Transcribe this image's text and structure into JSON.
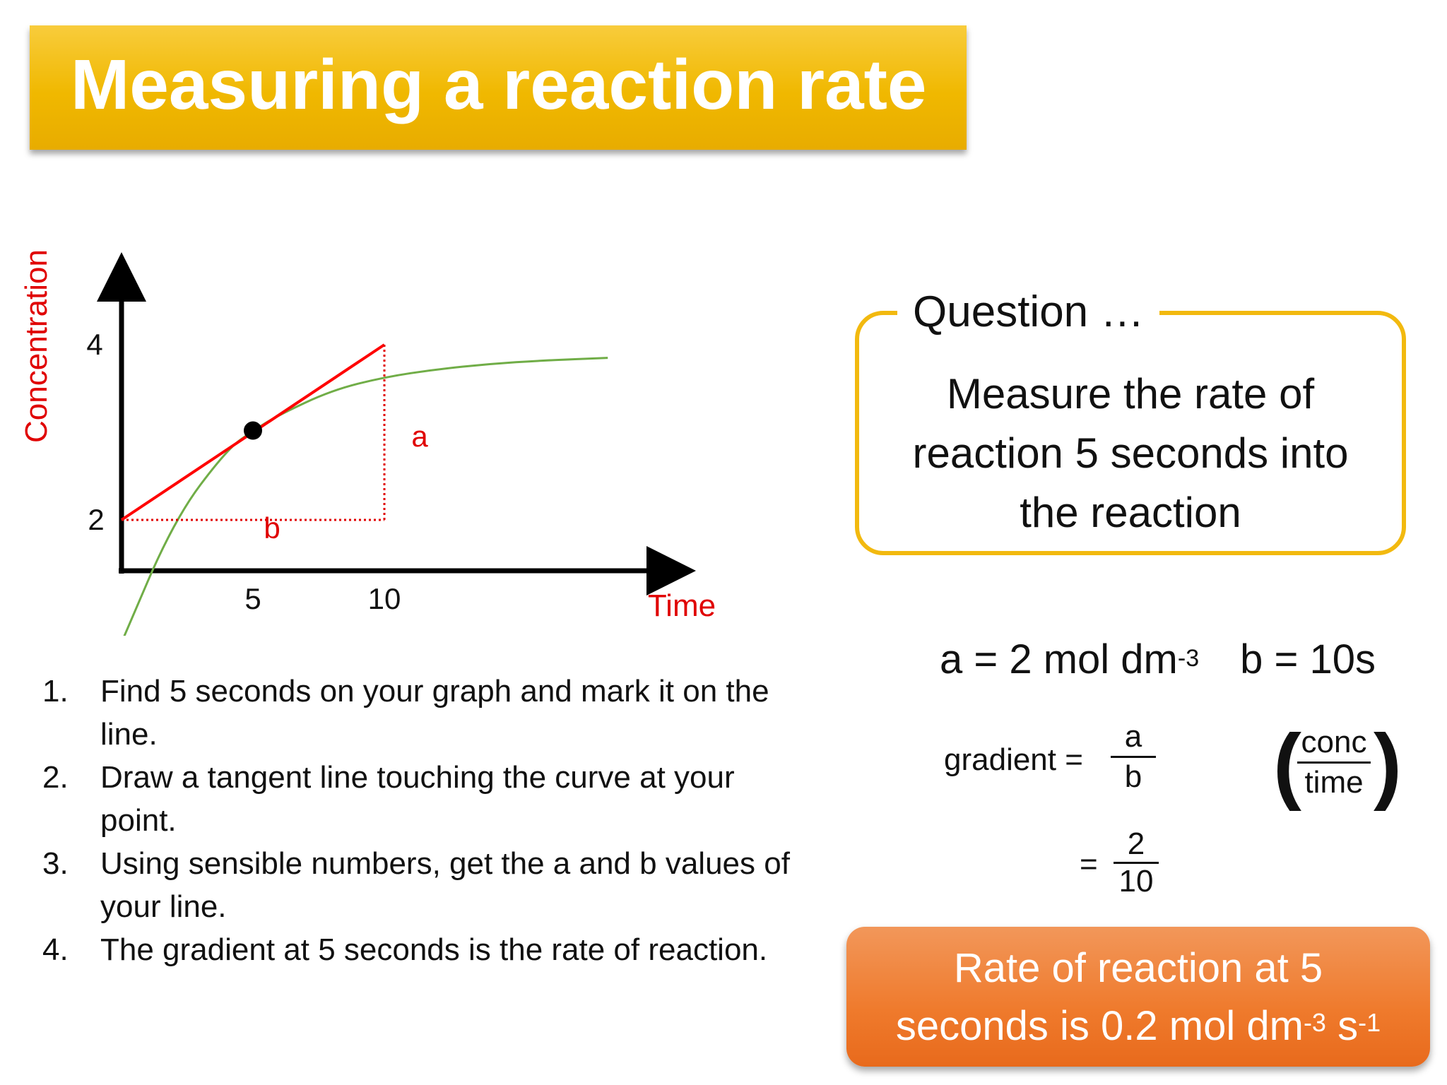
{
  "title": "Measuring a reaction rate",
  "graph": {
    "ylabel": "Concentration",
    "xlabel": "Time",
    "y_ticks": [
      "4",
      "2"
    ],
    "x_ticks": [
      "5",
      "10"
    ],
    "label_a": "a",
    "label_b": "b",
    "colors": {
      "curve": "#70ad47",
      "tangent": "#ff0000",
      "axis_labels": "#e00000"
    }
  },
  "chart_data": {
    "type": "line",
    "xlabel": "Time",
    "ylabel": "Concentration",
    "x_ticks": [
      5,
      10
    ],
    "y_ticks": [
      2,
      4
    ],
    "series": [
      {
        "x": [
          0,
          2,
          4,
          5,
          6,
          8,
          10,
          12,
          14,
          16,
          18.5
        ],
        "values": [
          0.6,
          2.0,
          2.8,
          3.02,
          3.2,
          3.48,
          3.63,
          3.72,
          3.78,
          3.82,
          3.85
        ]
      },
      {
        "x": [
          0,
          10
        ],
        "values": [
          2,
          4
        ]
      }
    ],
    "point": {
      "x": 5,
      "y": 3.02
    },
    "annotations": [
      "a",
      "b"
    ]
  },
  "question": {
    "label": "Question …",
    "text_lines": [
      "Measure the rate of",
      "reaction 5 seconds into",
      "the reaction"
    ]
  },
  "steps": [
    {
      "num": "1.",
      "lines": [
        "Find 5 seconds on your graph and mark it on the",
        "line."
      ]
    },
    {
      "num": "2.",
      "lines": [
        "Draw a tangent line touching the curve at your",
        "point."
      ]
    },
    {
      "num": "3.",
      "lines": [
        "Using sensible numbers, get the a and b values of",
        "your line."
      ]
    },
    {
      "num": "4.",
      "lines": [
        "The gradient at 5 seconds is the rate of reaction."
      ]
    }
  ],
  "values": {
    "a_text": "a = 2 mol dm",
    "a_exp": "-3",
    "b_text": "b = 10s"
  },
  "gradient": {
    "label": "gradient =",
    "num": "a",
    "den": "b",
    "eq": "=",
    "num2": "2",
    "den2": "10",
    "unit_num": "conc",
    "unit_den": "time",
    "paren_open": "(",
    "paren_close": ")"
  },
  "result": {
    "line1": "Rate of reaction at 5",
    "line2_text": "seconds is 0.2 mol dm",
    "exp1": "-3",
    "space": " s",
    "exp2": "-1"
  }
}
